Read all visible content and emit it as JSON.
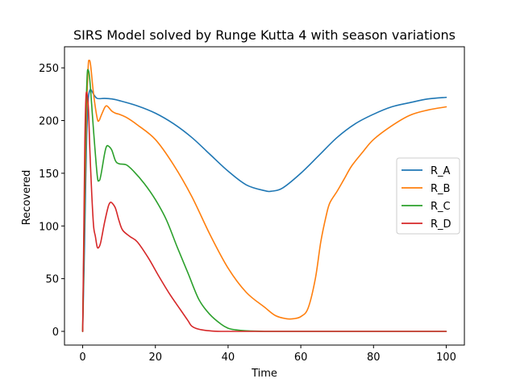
{
  "chart_data": {
    "type": "line",
    "title": "SIRS Model solved by Runge Kutta 4 with season variations",
    "xlabel": "Time",
    "ylabel": "Recovered",
    "xlim": [
      -5,
      105
    ],
    "ylim": [
      -13,
      270
    ],
    "xticks": [
      0,
      20,
      40,
      60,
      80,
      100
    ],
    "yticks": [
      0,
      50,
      100,
      150,
      200,
      250
    ],
    "grid": false,
    "legend_placement": "center-right",
    "series": [
      {
        "name": "R_A",
        "color": "#1f77b4",
        "points": [
          [
            0,
            0
          ],
          [
            0.5,
            80
          ],
          [
            1,
            170
          ],
          [
            1.5,
            218
          ],
          [
            2,
            229
          ],
          [
            2.5,
            228
          ],
          [
            3,
            225
          ],
          [
            4,
            221
          ],
          [
            6,
            221
          ],
          [
            8,
            220.5
          ],
          [
            10,
            219
          ],
          [
            15,
            214
          ],
          [
            20,
            207
          ],
          [
            25,
            197
          ],
          [
            30,
            184
          ],
          [
            35,
            168
          ],
          [
            40,
            152
          ],
          [
            45,
            139
          ],
          [
            50,
            133.5
          ],
          [
            52,
            133
          ],
          [
            55,
            136
          ],
          [
            60,
            150
          ],
          [
            65,
            167
          ],
          [
            70,
            184
          ],
          [
            75,
            197
          ],
          [
            80,
            206
          ],
          [
            85,
            213
          ],
          [
            90,
            217
          ],
          [
            95,
            220.5
          ],
          [
            100,
            222
          ]
        ]
      },
      {
        "name": "R_B",
        "color": "#ff7f0e",
        "points": [
          [
            0,
            0
          ],
          [
            0.5,
            110
          ],
          [
            1,
            200
          ],
          [
            1.5,
            250
          ],
          [
            1.8,
            257
          ],
          [
            2.2,
            252
          ],
          [
            3,
            225
          ],
          [
            4,
            202
          ],
          [
            4.5,
            200
          ],
          [
            5,
            204
          ],
          [
            6,
            212
          ],
          [
            6.5,
            214
          ],
          [
            7,
            213
          ],
          [
            8,
            209
          ],
          [
            9,
            207
          ],
          [
            10,
            206
          ],
          [
            12,
            203
          ],
          [
            15,
            196
          ],
          [
            20,
            182
          ],
          [
            25,
            158
          ],
          [
            30,
            128
          ],
          [
            35,
            92
          ],
          [
            40,
            60
          ],
          [
            45,
            37
          ],
          [
            50,
            23
          ],
          [
            53,
            15
          ],
          [
            56,
            12
          ],
          [
            58,
            12
          ],
          [
            60,
            14
          ],
          [
            62,
            22
          ],
          [
            64,
            50
          ],
          [
            65.5,
            85
          ],
          [
            67,
            110
          ],
          [
            68,
            122
          ],
          [
            70,
            133
          ],
          [
            72,
            145
          ],
          [
            74,
            157
          ],
          [
            77,
            170
          ],
          [
            80,
            182
          ],
          [
            85,
            195
          ],
          [
            90,
            205
          ],
          [
            95,
            210
          ],
          [
            100,
            213
          ]
        ]
      },
      {
        "name": "R_C",
        "color": "#2ca02c",
        "points": [
          [
            0,
            0
          ],
          [
            0.4,
            100
          ],
          [
            0.8,
            190
          ],
          [
            1.2,
            240
          ],
          [
            1.5,
            248
          ],
          [
            2,
            237
          ],
          [
            3,
            190
          ],
          [
            4,
            148
          ],
          [
            4.5,
            143
          ],
          [
            5,
            148
          ],
          [
            6,
            168
          ],
          [
            6.5,
            175
          ],
          [
            7,
            176
          ],
          [
            8,
            172
          ],
          [
            9,
            162
          ],
          [
            10,
            159
          ],
          [
            12,
            158
          ],
          [
            14,
            152
          ],
          [
            17,
            140
          ],
          [
            20,
            125
          ],
          [
            23,
            106
          ],
          [
            26,
            80
          ],
          [
            29,
            55
          ],
          [
            32,
            30
          ],
          [
            35,
            16
          ],
          [
            38,
            7
          ],
          [
            40,
            3
          ],
          [
            42,
            1.5
          ],
          [
            45,
            0.5
          ],
          [
            50,
            0
          ],
          [
            60,
            0
          ],
          [
            80,
            0
          ],
          [
            100,
            0
          ]
        ]
      },
      {
        "name": "R_D",
        "color": "#d62728",
        "points": [
          [
            0,
            0
          ],
          [
            0.3,
            90
          ],
          [
            0.6,
            180
          ],
          [
            0.9,
            222
          ],
          [
            1.2,
            225
          ],
          [
            1.6,
            210
          ],
          [
            2,
            170
          ],
          [
            2.5,
            130
          ],
          [
            3,
            100
          ],
          [
            3.5,
            90
          ],
          [
            4,
            80
          ],
          [
            4.5,
            80
          ],
          [
            5,
            85
          ],
          [
            6,
            103
          ],
          [
            7,
            118
          ],
          [
            7.5,
            122
          ],
          [
            8,
            122
          ],
          [
            9,
            117
          ],
          [
            10,
            105
          ],
          [
            11,
            96
          ],
          [
            13,
            90
          ],
          [
            15,
            85
          ],
          [
            18,
            70
          ],
          [
            21,
            52
          ],
          [
            24,
            35
          ],
          [
            27,
            20
          ],
          [
            29,
            10
          ],
          [
            30,
            5
          ],
          [
            32,
            2
          ],
          [
            35,
            0.5
          ],
          [
            38,
            0
          ],
          [
            50,
            0
          ],
          [
            75,
            0
          ],
          [
            100,
            0
          ]
        ]
      }
    ]
  }
}
